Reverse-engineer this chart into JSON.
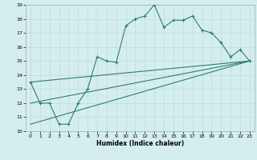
{
  "xlabel": "Humidex (Indice chaleur)",
  "bg_color": "#d4eeee",
  "line_color": "#2e7d6e",
  "grid_color": "#c0dada",
  "xlim": [
    -0.5,
    23.5
  ],
  "ylim": [
    10,
    19
  ],
  "xticks": [
    0,
    1,
    2,
    3,
    4,
    5,
    6,
    7,
    8,
    9,
    10,
    11,
    12,
    13,
    14,
    15,
    16,
    17,
    18,
    19,
    20,
    21,
    22,
    23
  ],
  "yticks": [
    10,
    11,
    12,
    13,
    14,
    15,
    16,
    17,
    18,
    19
  ],
  "series1_x": [
    0,
    1,
    2,
    3,
    4,
    5,
    6,
    7,
    8,
    9,
    10,
    11,
    12,
    13,
    14,
    15,
    16,
    17,
    18,
    19,
    20,
    21,
    22,
    23
  ],
  "series1_y": [
    13.5,
    12.0,
    12.0,
    10.5,
    10.5,
    12.0,
    13.0,
    15.3,
    15.0,
    14.9,
    17.5,
    18.0,
    18.2,
    19.0,
    17.4,
    17.9,
    17.9,
    18.2,
    17.2,
    17.0,
    16.3,
    15.3,
    15.8,
    15.0
  ],
  "trendline1_x": [
    0,
    23
  ],
  "trendline1_y": [
    13.5,
    15.0
  ],
  "trendline2_x": [
    0,
    23
  ],
  "trendline2_y": [
    12.0,
    15.0
  ],
  "trendline3_x": [
    0,
    23
  ],
  "trendline3_y": [
    10.5,
    15.0
  ]
}
